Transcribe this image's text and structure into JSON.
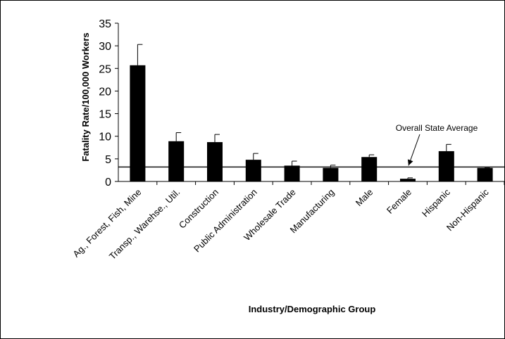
{
  "chart_data": {
    "type": "bar",
    "categories": [
      "Ag., Forest, Fish, Mine",
      "Transp., Warehse., Util.",
      "Construction",
      "Public Administration",
      "Wholesale Trade",
      "Manufacturing",
      "Male",
      "Female",
      "Hispanic",
      "Non-Hispanic"
    ],
    "series": [
      {
        "values": [
          25.7,
          8.9,
          8.7,
          4.8,
          3.5,
          3.0,
          5.4,
          0.6,
          6.7,
          3.0
        ],
        "error_upper": [
          4.6,
          1.9,
          1.7,
          1.4,
          1.0,
          0.6,
          0.5,
          0.2,
          1.5,
          0.1
        ],
        "color": "#000000"
      }
    ],
    "reference_line": {
      "value": 3.2,
      "label": "Overall State Average"
    },
    "xlabel": "Industry/Demographic Group",
    "ylabel": "Fatality Rate/100,000 Workers",
    "ylim": [
      0,
      35
    ],
    "yticks": [
      0,
      5,
      10,
      15,
      20,
      25,
      30,
      35
    ],
    "grid": false,
    "legend": "none"
  }
}
